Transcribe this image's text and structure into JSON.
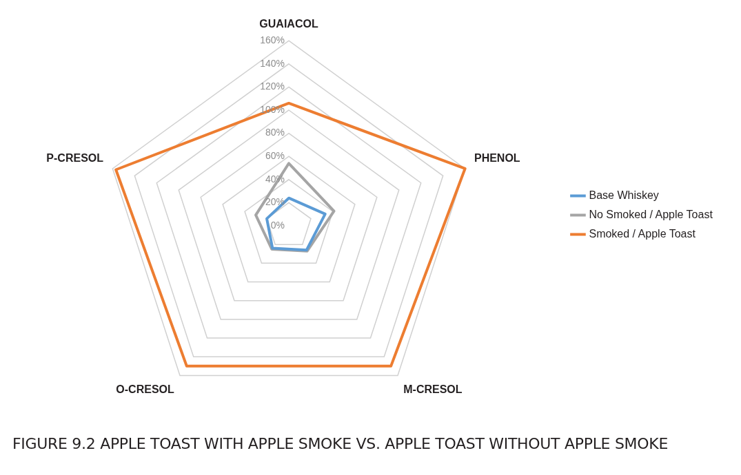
{
  "chart_data": {
    "type": "radar",
    "title": "FIGURE 9.2  APPLE TOAST WITH APPLE SMOKE VS. APPLE TOAST WITHOUT APPLE SMOKE",
    "categories": [
      "GUAIACOL",
      "PHENOL",
      "M-CRESOL",
      "O-CRESOL",
      "P-CRESOL"
    ],
    "series": [
      {
        "name": "Base Whiskey",
        "color": "#5b9bd5",
        "values": [
          24,
          33,
          26,
          24,
          20
        ]
      },
      {
        "name": "No Smoked / Apple Toast",
        "color": "#a5a5a5",
        "values": [
          54,
          41,
          27,
          25,
          30
        ]
      },
      {
        "name": "Smoked / Apple Toast",
        "color": "#ed7d31",
        "values": [
          106,
          160,
          150,
          150,
          157
        ]
      }
    ],
    "ylim": [
      0,
      160
    ],
    "yticks": [
      {
        "value": 0,
        "label": "0%"
      },
      {
        "value": 20,
        "label": "20%"
      },
      {
        "value": 40,
        "label": "40%"
      },
      {
        "value": 60,
        "label": "60%"
      },
      {
        "value": 80,
        "label": "80%"
      },
      {
        "value": 100,
        "label": "100%"
      },
      {
        "value": 120,
        "label": "120%"
      },
      {
        "value": 140,
        "label": "140%"
      },
      {
        "value": 160,
        "label": "160%"
      }
    ],
    "grid": true,
    "legend": "right",
    "marker": "none"
  }
}
